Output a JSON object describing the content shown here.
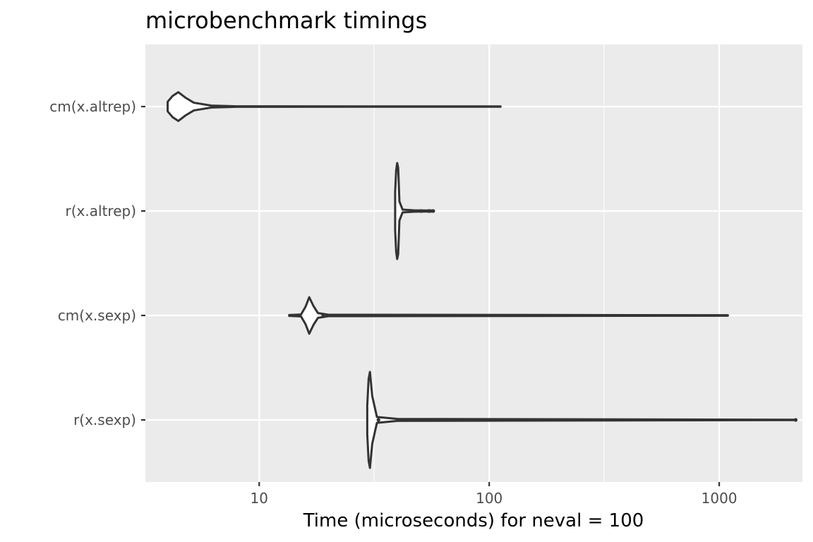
{
  "chart_data": {
    "type": "violin",
    "title": "microbenchmark timings",
    "xlabel": "Time (microseconds) for neval = 100",
    "ylabel": "",
    "x_scale": "log10",
    "xlim": [
      3.2,
      2300
    ],
    "x_ticks": [
      10,
      100,
      1000
    ],
    "x_tick_labels": [
      "10",
      "100",
      "1000"
    ],
    "x_minor_ticks": [
      3.16,
      31.6,
      316
    ],
    "categories": [
      "cm(x.altrep)",
      "r(x.altrep)",
      "cm(x.sexp)",
      "r(x.sexp)"
    ],
    "grid": true,
    "legend": "none",
    "series": [
      {
        "category": "cm(x.altrep)",
        "min": 4.0,
        "max": 112,
        "density": [
          [
            4.0,
            0.1
          ],
          [
            4.2,
            0.22
          ],
          [
            4.45,
            0.3
          ],
          [
            4.8,
            0.18
          ],
          [
            5.2,
            0.08
          ],
          [
            6.2,
            0.02
          ],
          [
            8,
            0.005
          ],
          [
            112,
            0.003
          ]
        ],
        "outliers": []
      },
      {
        "category": "r(x.altrep)",
        "min": 39.0,
        "max": 57.5,
        "density": [
          [
            39.0,
            0.4
          ],
          [
            39.4,
            0.85
          ],
          [
            39.8,
            1.0
          ],
          [
            40.2,
            0.9
          ],
          [
            40.7,
            0.2
          ],
          [
            42,
            0.03
          ],
          [
            47,
            0.015
          ],
          [
            57.5,
            0.01
          ]
        ],
        "outliers": [
          50.5,
          54.5,
          55.5,
          57.0
        ]
      },
      {
        "category": "cm(x.sexp)",
        "min": 13.5,
        "max": 1090,
        "density": [
          [
            13.5,
            0.01
          ],
          [
            15.2,
            0.02
          ],
          [
            15.9,
            0.18
          ],
          [
            16.5,
            0.38
          ],
          [
            17.2,
            0.2
          ],
          [
            18,
            0.05
          ],
          [
            20,
            0.015
          ],
          [
            1090,
            0.006
          ]
        ],
        "outliers": [
          19.0,
          27.5
        ]
      },
      {
        "category": "r(x.sexp)",
        "min": 29.5,
        "max": 2150,
        "density": [
          [
            29.5,
            0.3
          ],
          [
            29.9,
            0.85
          ],
          [
            30.3,
            1.0
          ],
          [
            31.0,
            0.5
          ],
          [
            32.5,
            0.06
          ],
          [
            40,
            0.02
          ],
          [
            2150,
            0.004
          ]
        ],
        "outliers": [
          33.0,
          41.0,
          2150
        ]
      }
    ],
    "colors": {
      "panel": "#ebebeb",
      "grid": "#ffffff",
      "outline": "#333333",
      "fill": "#ffffff"
    }
  }
}
